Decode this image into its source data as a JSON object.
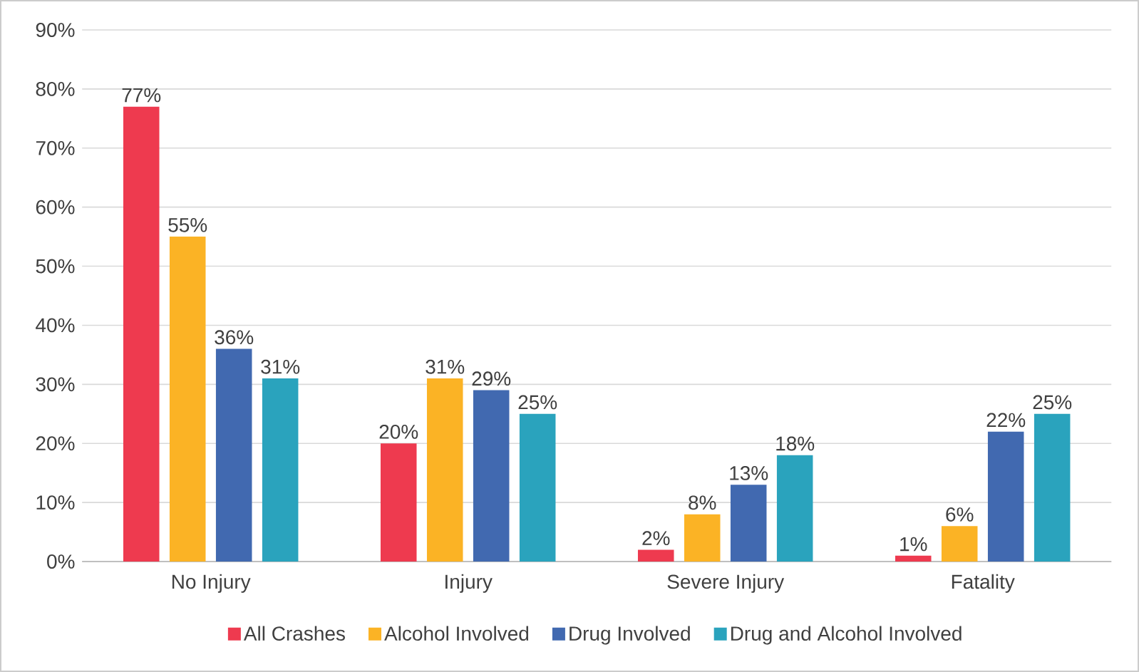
{
  "chart_data": {
    "type": "bar",
    "categories": [
      "No Injury",
      "Injury",
      "Severe Injury",
      "Fatality"
    ],
    "series": [
      {
        "name": "All Crashes",
        "color": "#ee3a4f",
        "values": [
          77,
          20,
          2,
          1
        ],
        "value_labels": [
          "77%",
          "20%",
          "2%",
          "1%"
        ]
      },
      {
        "name": "Alcohol Involved",
        "color": "#fbb325",
        "values": [
          55,
          31,
          8,
          6
        ],
        "value_labels": [
          "55%",
          "31%",
          "8%",
          "6%"
        ]
      },
      {
        "name": "Drug Involved",
        "color": "#4169b0",
        "values": [
          36,
          29,
          13,
          22
        ],
        "value_labels": [
          "36%",
          "29%",
          "13%",
          "22%"
        ]
      },
      {
        "name": "Drug and Alcohol Involved",
        "color": "#2aa3bd",
        "values": [
          31,
          25,
          18,
          25
        ],
        "value_labels": [
          "31%",
          "25%",
          "18%",
          "25%"
        ]
      }
    ],
    "ylim": [
      0,
      90
    ],
    "yticks": [
      {
        "value": 0,
        "label": "0%"
      },
      {
        "value": 10,
        "label": "10%"
      },
      {
        "value": 20,
        "label": "20%"
      },
      {
        "value": 30,
        "label": "30%"
      },
      {
        "value": 40,
        "label": "40%"
      },
      {
        "value": 50,
        "label": "50%"
      },
      {
        "value": 60,
        "label": "60%"
      },
      {
        "value": 70,
        "label": "70%"
      },
      {
        "value": 80,
        "label": "80%"
      },
      {
        "value": 90,
        "label": "90%"
      }
    ],
    "grid": "y",
    "legend": "bottom"
  }
}
